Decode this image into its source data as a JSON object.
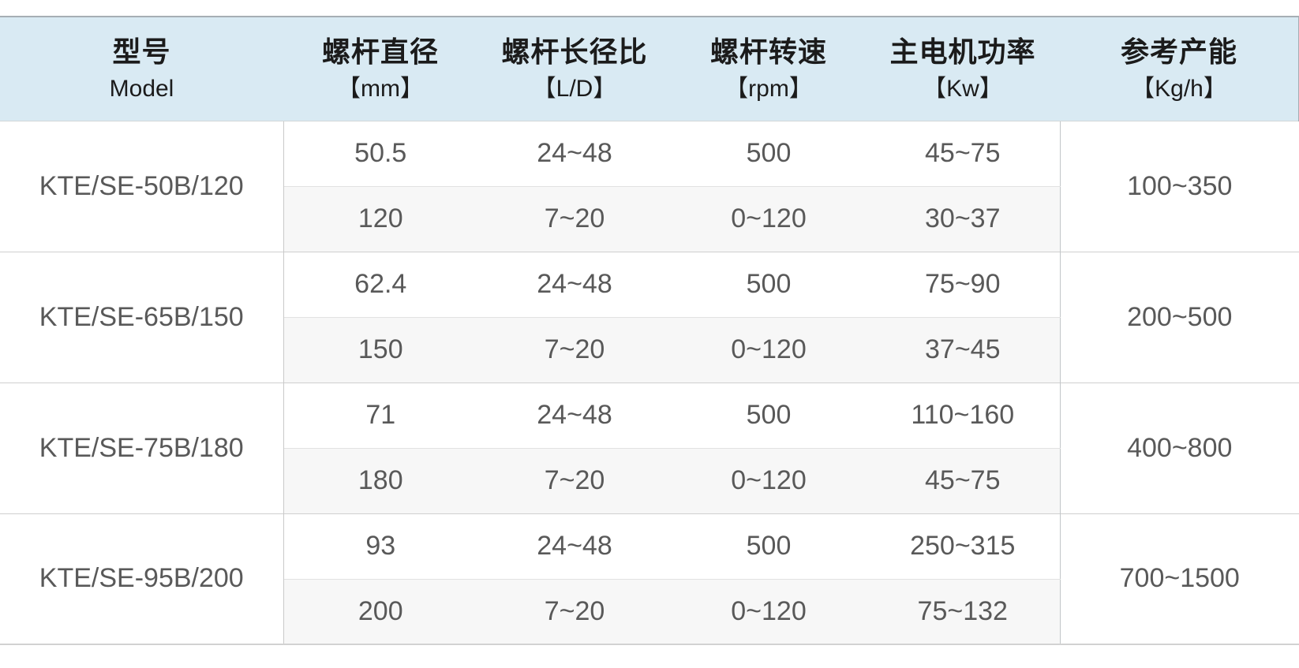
{
  "table": {
    "header": {
      "columns": [
        {
          "title": "型号",
          "subtitle": "Model"
        },
        {
          "title": "螺杆直径",
          "subtitle": "【mm】"
        },
        {
          "title": "螺杆长径比",
          "subtitle": "【L/D】"
        },
        {
          "title": "螺杆转速",
          "subtitle": "【rpm】"
        },
        {
          "title": "主电机功率",
          "subtitle": "【Kw】"
        },
        {
          "title": "参考产能",
          "subtitle": "【Kg/h】"
        }
      ]
    },
    "groups": [
      {
        "model": "KTE/SE-50B/120",
        "capacity": "100~350",
        "rows": [
          {
            "diameter": "50.5",
            "ld": "24~48",
            "rpm": "500",
            "power": "45~75"
          },
          {
            "diameter": "120",
            "ld": "7~20",
            "rpm": "0~120",
            "power": "30~37"
          }
        ]
      },
      {
        "model": "KTE/SE-65B/150",
        "capacity": "200~500",
        "rows": [
          {
            "diameter": "62.4",
            "ld": "24~48",
            "rpm": "500",
            "power": "75~90"
          },
          {
            "diameter": "150",
            "ld": "7~20",
            "rpm": "0~120",
            "power": "37~45"
          }
        ]
      },
      {
        "model": "KTE/SE-75B/180",
        "capacity": "400~800",
        "rows": [
          {
            "diameter": "71",
            "ld": "24~48",
            "rpm": "500",
            "power": "110~160"
          },
          {
            "diameter": "180",
            "ld": "7~20",
            "rpm": "0~120",
            "power": "45~75"
          }
        ]
      },
      {
        "model": "KTE/SE-95B/200",
        "capacity": "700~1500",
        "rows": [
          {
            "diameter": "93",
            "ld": "24~48",
            "rpm": "500",
            "power": "250~315"
          },
          {
            "diameter": "200",
            "ld": "7~20",
            "rpm": "0~120",
            "power": "75~132"
          }
        ]
      }
    ]
  },
  "colors": {
    "header_bg": "#d9eaf3",
    "header_text": "#1b1b1b",
    "body_text": "#595959",
    "alt_row_bg": "#f7f7f7",
    "outer_border": "#a6aeb4",
    "group_line": "#cfcfcf",
    "subrow_line": "#e2e2e2"
  }
}
